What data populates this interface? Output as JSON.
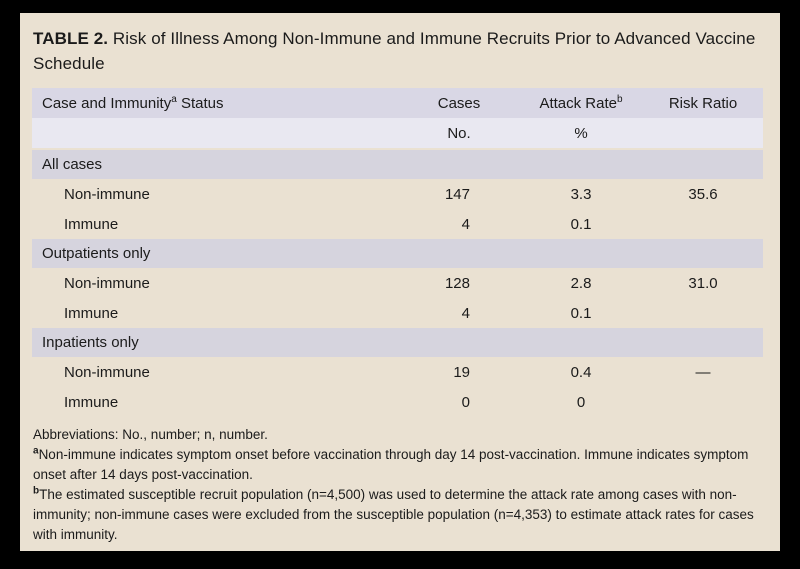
{
  "title": {
    "label": "TABLE 2.",
    "text": " Risk of Illness Among Non-Immune and Immune Recruits Prior to Advanced Vaccine Schedule"
  },
  "table": {
    "columns": {
      "case_status_pre": "Case and Immunity",
      "case_status_sup": "a",
      "case_status_post": " Status",
      "cases": "Cases",
      "attack_rate_pre": "Attack Rate",
      "attack_rate_sup": "b",
      "risk_ratio": "Risk Ratio"
    },
    "units": {
      "cases": "No.",
      "attack_rate": "%"
    },
    "sections": [
      {
        "header": "All cases",
        "rows": [
          {
            "label": "Non-immune",
            "cases": "147",
            "attack": "3.3",
            "risk": "35.6"
          },
          {
            "label": "Immune",
            "cases": "4",
            "attack": "0.1",
            "risk": ""
          }
        ]
      },
      {
        "header": "Outpatients only",
        "rows": [
          {
            "label": "Non-immune",
            "cases": "128",
            "attack": "2.8",
            "risk": "31.0"
          },
          {
            "label": "Immune",
            "cases": "4",
            "attack": "0.1",
            "risk": ""
          }
        ]
      },
      {
        "header": "Inpatients only",
        "rows": [
          {
            "label": "Non-immune",
            "cases": "19",
            "attack": "0.4",
            "risk": "—"
          },
          {
            "label": "Immune",
            "cases": "0",
            "attack": "0",
            "risk": ""
          }
        ]
      }
    ]
  },
  "footnotes": {
    "abbreviations": "Abbreviations: No., number; n, number.",
    "a_marker": "a",
    "a_text": "Non-immune indicates symptom onset before vaccination through day 14 post-vaccination. Immune indicates symptom onset after 14 days post-vaccination.",
    "b_marker": "b",
    "b_text": "The estimated susceptible recruit population (n=4,500) was used to determine the attack rate among cases with non-immunity; non-immune cases were excluded from the susceptible population (n=4,353) to estimate attack rates for cases with immunity."
  },
  "colors": {
    "frame": "#000000",
    "panel_background": "#eae1d2",
    "header_row": "#d9d7e5",
    "subheader_row": "#e9e8f1",
    "section_row": "#d6d4de",
    "text": "#1b1b1b"
  }
}
